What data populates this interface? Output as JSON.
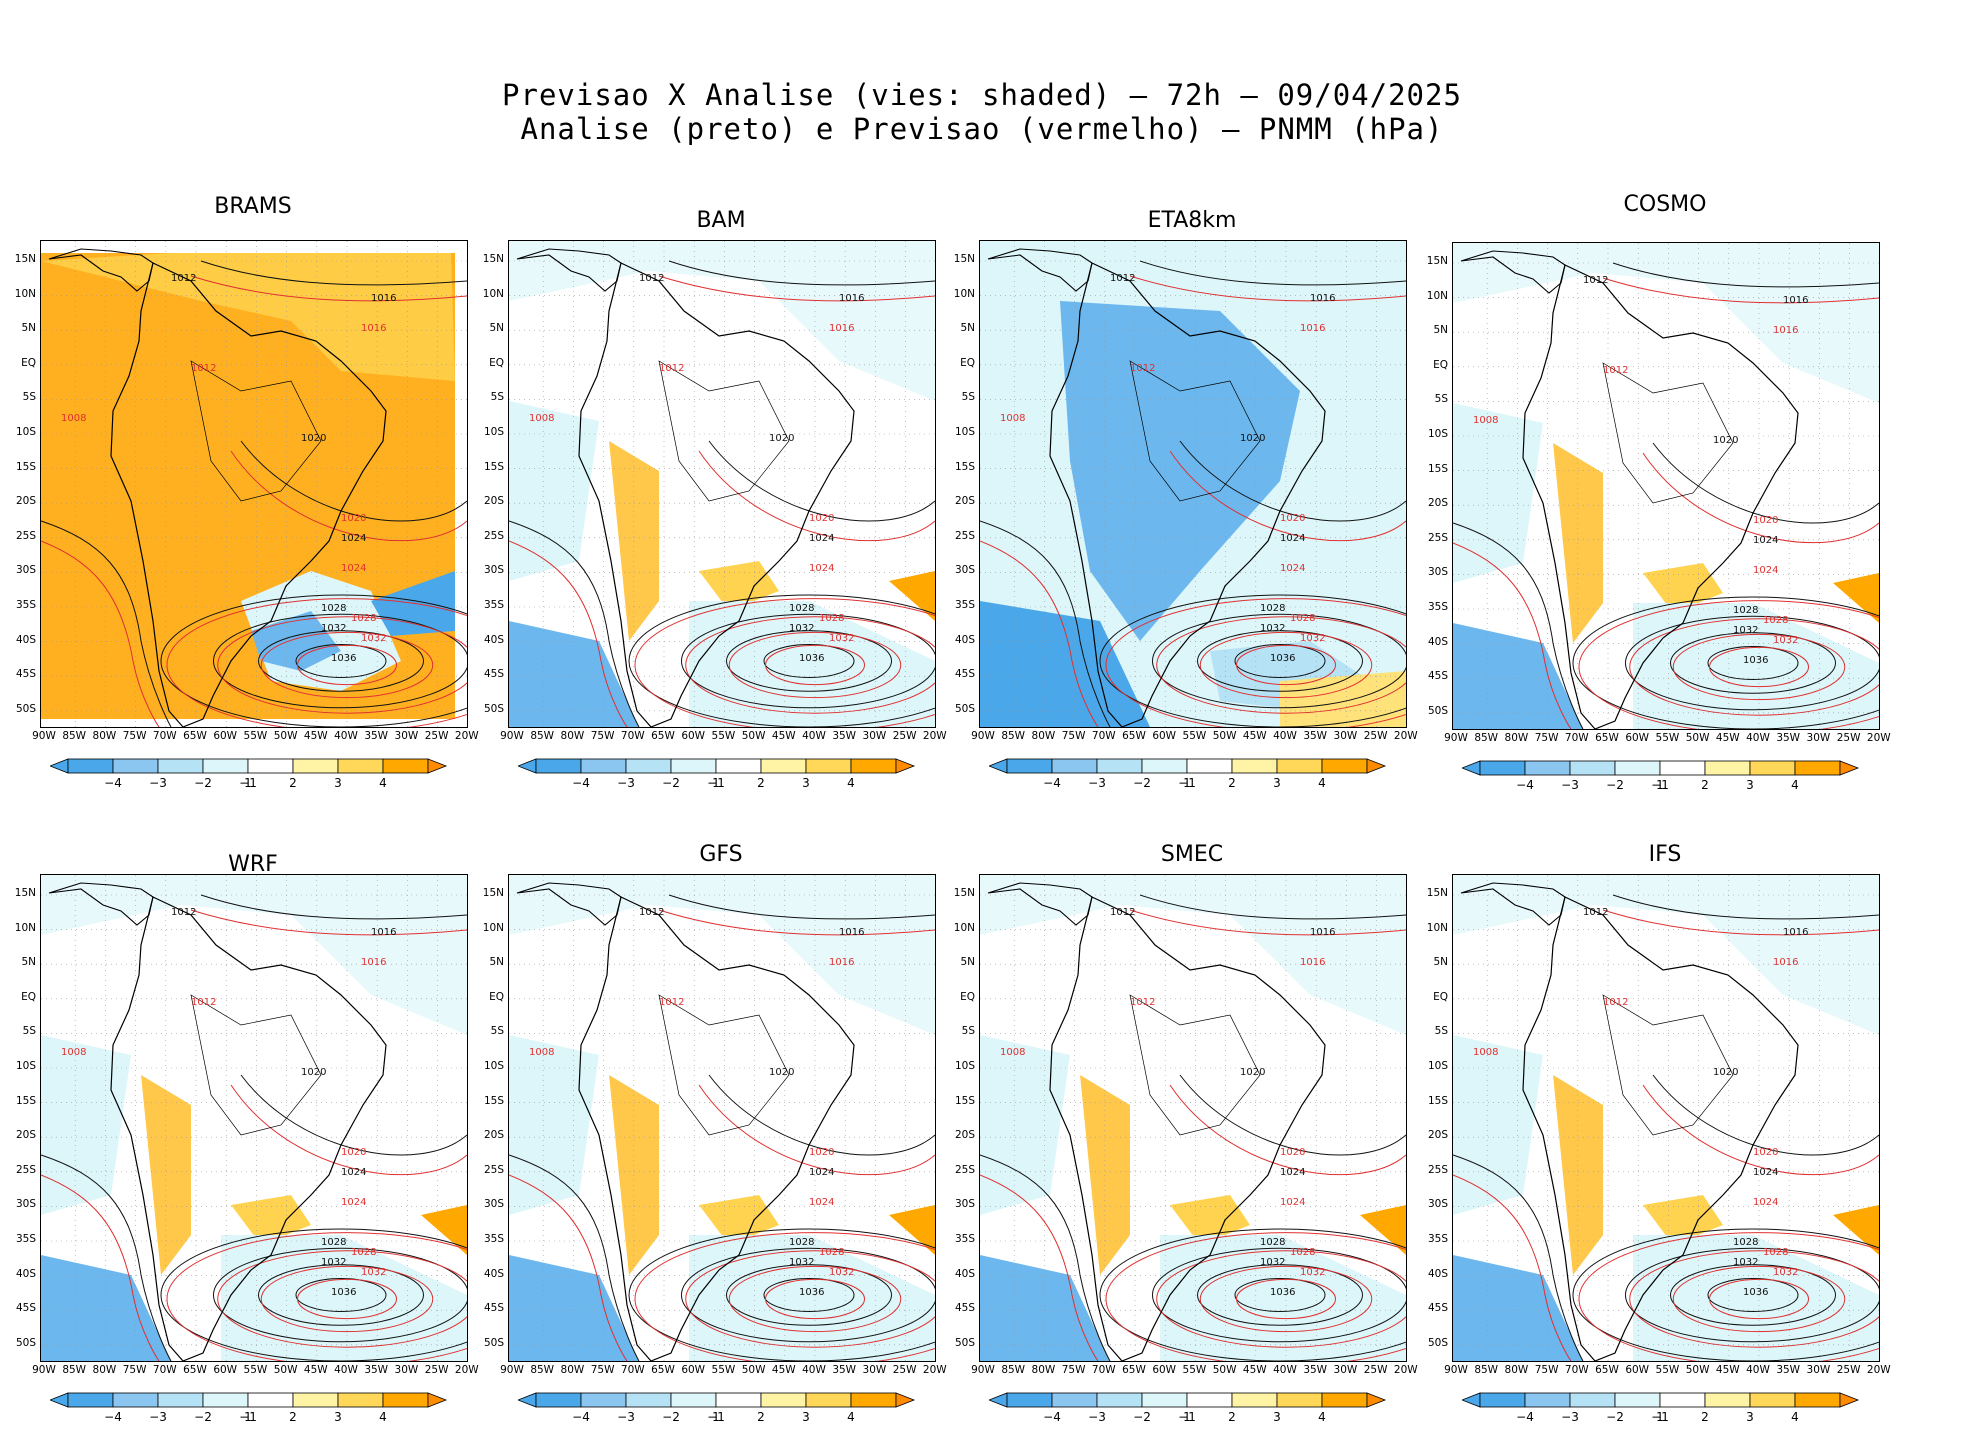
{
  "title": {
    "line1": "Previsao X Analise (vies: shaded) – 72h – 09/04/2025",
    "line2": "Analise (preto) e Previsao (vermelho) – PNMM (hPa)"
  },
  "panels": [
    {
      "name": "BRAMS",
      "theme": "warm"
    },
    {
      "name": "BAM",
      "theme": "mixed"
    },
    {
      "name": "ETA8km",
      "theme": "cool"
    },
    {
      "name": "COSMO",
      "theme": "mixed"
    },
    {
      "name": "WRF",
      "theme": "mixed"
    },
    {
      "name": "GFS",
      "theme": "mixed"
    },
    {
      "name": "SMEC",
      "theme": "mixed"
    },
    {
      "name": "IFS",
      "theme": "mixed"
    }
  ],
  "lat_labels": [
    "15N",
    "10N",
    "5N",
    "EQ",
    "5S",
    "10S",
    "15S",
    "20S",
    "25S",
    "30S",
    "35S",
    "40S",
    "45S",
    "50S"
  ],
  "lon_labels": [
    "90W",
    "85W",
    "80W",
    "75W",
    "70W",
    "65W",
    "60W",
    "55W",
    "50W",
    "45W",
    "40W",
    "35W",
    "30W",
    "25W",
    "20W"
  ],
  "colorbar": {
    "labels": [
      "−4",
      "−3",
      "−2",
      "−1",
      "1",
      "2",
      "3",
      "4"
    ],
    "colors": [
      "#4aa8ea",
      "#8ac6f0",
      "#b6e2f6",
      "#dcf6fa",
      "#ffffff",
      "#fff3a6",
      "#ffd85a",
      "#ffa800",
      "#ff8c00"
    ]
  },
  "contour_labels": {
    "analysis": [
      "1012",
      "1016",
      "1020",
      "1024",
      "1028",
      "1032",
      "1036"
    ],
    "forecast": [
      "1008",
      "1012",
      "1016",
      "1020",
      "1024",
      "1028",
      "1032"
    ]
  }
}
